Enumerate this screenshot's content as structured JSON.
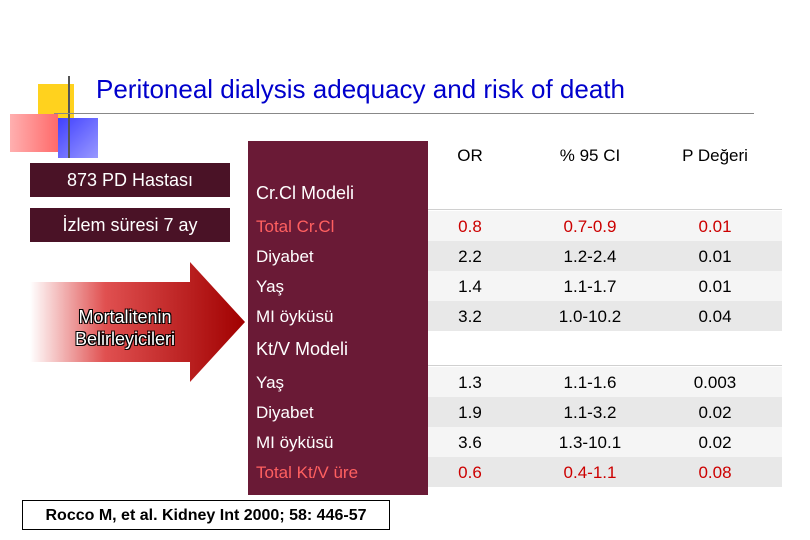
{
  "title": "Peritoneal dialysis adequacy and risk of death",
  "side": {
    "patients": "873 PD Hastası",
    "followup": "İzlem süresi 7 ay",
    "arrow_line1": "Mortalitenin",
    "arrow_line2": "Belirleyicileri"
  },
  "table": {
    "headers": [
      "OR",
      "% 95 CI",
      "P Değeri"
    ],
    "models": [
      {
        "name": "Cr.Cl Modeli",
        "rows": [
          {
            "label": "Total Cr.Cl",
            "or": "0.8",
            "ci": "0.7-0.9",
            "p": "0.01",
            "highlight": true
          },
          {
            "label": "Diyabet",
            "or": "2.2",
            "ci": "1.2-2.4",
            "p": "0.01",
            "highlight": false
          },
          {
            "label": "Yaş",
            "or": "1.4",
            "ci": "1.1-1.7",
            "p": "0.01",
            "highlight": false
          },
          {
            "label": "MI öyküsü",
            "or": "3.2",
            "ci": "1.0-10.2",
            "p": "0.04",
            "highlight": false
          }
        ]
      },
      {
        "name": "Kt/V Modeli",
        "rows": [
          {
            "label": "Yaş",
            "or": "1.3",
            "ci": "1.1-1.6",
            "p": "0.003",
            "highlight": false
          },
          {
            "label": "Diyabet",
            "or": "1.9",
            "ci": "1.1-3.2",
            "p": "0.02",
            "highlight": false
          },
          {
            "label": "MI öyküsü",
            "or": "3.6",
            "ci": "1.3-10.1",
            "p": "0.02",
            "highlight": false
          },
          {
            "label": "Total Kt/V üre",
            "or": "0.6",
            "ci": "0.4-1.1",
            "p": "0.08",
            "highlight": true
          }
        ]
      }
    ]
  },
  "citation": "Rocco M, et al. Kidney Int 2000; 58: 446-57",
  "colors": {
    "title": "#0000cc",
    "maroon": "#6a1a36",
    "highlight": "#cc0000"
  }
}
